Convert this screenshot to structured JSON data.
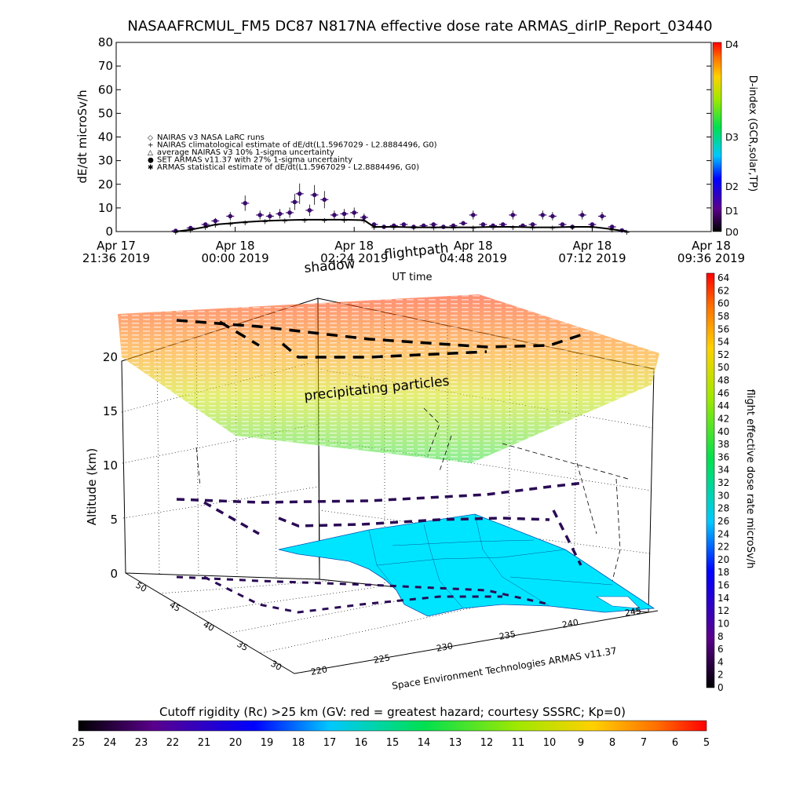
{
  "page": {
    "title": "NASAAFRCMUL_FM5 DC87 N817NA effective dose rate ARMAS_dirIP_Report_03440",
    "credit": "Space Environment Technologies ARMAS v11.37",
    "colors": {
      "background": "#ffffff",
      "axes": "#000000",
      "land": "#00e5ff",
      "series_marker": "#3a0a6e"
    }
  },
  "chart_data": [
    {
      "type": "line",
      "title": "NASAAFRCMUL_FM5 DC87 N817NA effective dose rate ARMAS_dirIP_Report_03440",
      "xlabel": "UT time",
      "ylabel": "dE/dt microSv/h",
      "ylim": [
        0,
        80
      ],
      "yticks": [
        "0",
        "10",
        "20",
        "30",
        "40",
        "50",
        "60",
        "70",
        "80"
      ],
      "xticks": [
        {
          "l1": "Apr 17",
          "l2": "21:36 2019"
        },
        {
          "l1": "Apr 18",
          "l2": "00:00 2019"
        },
        {
          "l1": "Apr 18",
          "l2": "02:24 2019"
        },
        {
          "l1": "Apr 18",
          "l2": "04:48 2019"
        },
        {
          "l1": "Apr 18",
          "l2": "07:12 2019"
        },
        {
          "l1": "Apr 18",
          "l2": "09:36 2019"
        }
      ],
      "x_unit": "hours after 2019-04-17 21:36 UT",
      "x_range": [
        0,
        12
      ],
      "legend": [
        {
          "symbol": "◇",
          "label": "NAIRAS v3 NASA LaRC runs"
        },
        {
          "symbol": "+",
          "label": "NAIRAS climatological estimate of dE/dt(L1.5967029 - L2.8884496, G0)"
        },
        {
          "symbol": "△",
          "label": "average NAIRAS v3 10% 1-sigma uncertainty"
        },
        {
          "symbol": "●",
          "label": "SET ARMAS v11.37 with 27% 1-sigma uncertainty"
        },
        {
          "symbol": "✱",
          "label": "ARMAS statistical estimate of dE/dt(L1.5967029 - L2.8884496, G0)"
        }
      ],
      "legend_position": "upper-left",
      "series": [
        {
          "name": "SET ARMAS v11.37 with 27% 1-sigma uncertainty",
          "x": [
            1.2,
            1.5,
            1.8,
            2.0,
            2.3,
            2.6,
            2.9,
            3.1,
            3.3,
            3.5,
            3.6,
            3.7,
            3.9,
            4.0,
            4.2,
            4.4,
            4.6,
            4.8,
            5.0,
            5.2,
            5.4,
            5.6,
            5.8,
            6.0,
            6.2,
            6.4,
            6.6,
            6.8,
            7.0,
            7.2,
            7.4,
            7.6,
            7.8,
            8.0,
            8.2,
            8.4,
            8.6,
            8.8,
            9.0,
            9.2,
            9.4,
            9.6,
            9.8,
            10.0,
            10.2
          ],
          "values": [
            0.3,
            1.5,
            3.0,
            4.5,
            6.5,
            12.0,
            7.0,
            6.5,
            7.5,
            8.0,
            12.5,
            16.0,
            9.0,
            15.5,
            13.5,
            7.0,
            7.5,
            8.0,
            6.0,
            3.0,
            2.0,
            2.5,
            3.0,
            2.0,
            2.5,
            3.0,
            2.0,
            2.5,
            3.5,
            7.0,
            3.0,
            2.5,
            3.0,
            7.0,
            2.5,
            3.0,
            7.0,
            6.5,
            3.0,
            2.0,
            7.0,
            3.0,
            6.5,
            2.0,
            0.5
          ]
        },
        {
          "name": "NAIRAS climatological estimate of dE/dt(L1.5967029 - L2.8884496, G0)",
          "x": [
            1.2,
            1.5,
            1.8,
            2.0,
            2.3,
            2.6,
            3.0,
            3.4,
            3.8,
            4.2,
            4.6,
            5.0,
            5.2,
            5.6,
            6.0,
            6.4,
            6.8,
            7.2,
            7.6,
            8.0,
            8.4,
            8.8,
            9.2,
            9.6,
            10.0,
            10.3
          ],
          "values": [
            0.0,
            0.8,
            2.0,
            3.0,
            3.5,
            4.0,
            4.5,
            4.8,
            5.0,
            5.0,
            5.0,
            4.8,
            2.0,
            2.0,
            1.8,
            1.8,
            1.8,
            1.8,
            2.0,
            2.0,
            1.8,
            1.8,
            2.0,
            2.0,
            1.0,
            0.0
          ]
        }
      ],
      "right_axis": {
        "label": "D-index (GCR,solar,TP)",
        "ticks": [
          "D0",
          "D1",
          "D2",
          "D3",
          "D4"
        ]
      }
    },
    {
      "type": "3d-trajectory",
      "ylabel": "Altitude (km)",
      "zticks": [
        "0",
        "5",
        "10",
        "15",
        "20"
      ],
      "latitude_ticks": [
        "30",
        "35",
        "40",
        "45",
        "50"
      ],
      "longitude_ticks": [
        "220",
        "225",
        "230",
        "235",
        "240",
        "245"
      ],
      "annotations": [
        "shadow",
        "flightpath",
        "precipitating particles"
      ],
      "colorbar": {
        "label": "flight effective dose rate microSv/h",
        "range": [
          0,
          64
        ],
        "ticks": [
          "0",
          "2",
          "4",
          "6",
          "8",
          "10",
          "12",
          "14",
          "16",
          "18",
          "20",
          "22",
          "24",
          "26",
          "28",
          "30",
          "32",
          "34",
          "36",
          "38",
          "40",
          "42",
          "44",
          "46",
          "48",
          "50",
          "52",
          "54",
          "56",
          "58",
          "60",
          "62",
          "64"
        ]
      }
    },
    {
      "type": "colorbar",
      "title": "Cutoff rigidity (Rc) >25 km (GV: red = greatest hazard; courtesy SSSRC; Kp=0)",
      "ticks": [
        "25",
        "24",
        "23",
        "22",
        "21",
        "20",
        "19",
        "18",
        "17",
        "16",
        "15",
        "14",
        "13",
        "12",
        "11",
        "10",
        "9",
        "8",
        "7",
        "6",
        "5"
      ]
    }
  ]
}
